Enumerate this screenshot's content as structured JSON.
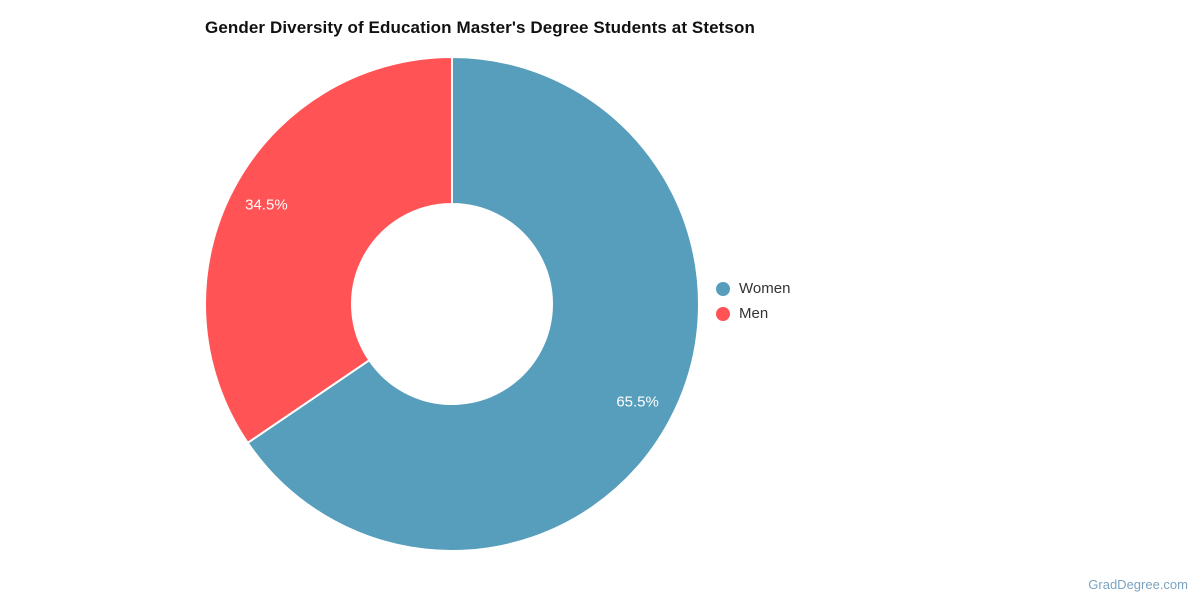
{
  "page": {
    "background": "#ffffff"
  },
  "header": {
    "title": "Gender Diversity of Education Master's Degree Students at Stetson",
    "title_color": "#111111"
  },
  "chart_data": {
    "type": "pie",
    "donut": true,
    "title": "Gender Diversity of Education Master's Degree Students at Stetson",
    "start_angle_deg": 0,
    "direction": "clockwise",
    "slice_label_color": "#ffffff",
    "slice_border_color": "#ffffff",
    "legend_position": "right",
    "slices": [
      {
        "name": "Women",
        "value": 65.5,
        "label": "65.5%",
        "color": "#579EBC"
      },
      {
        "name": "Men",
        "value": 34.5,
        "label": "34.5%",
        "color": "#FF5355"
      }
    ]
  },
  "legend": {
    "items": [
      {
        "label": "Women",
        "color": "#579EBC"
      },
      {
        "label": "Men",
        "color": "#FF5355"
      }
    ],
    "text_color": "#333333"
  },
  "footer": {
    "watermark": "GradDegree.com",
    "watermark_color": "#7BA3C0"
  }
}
